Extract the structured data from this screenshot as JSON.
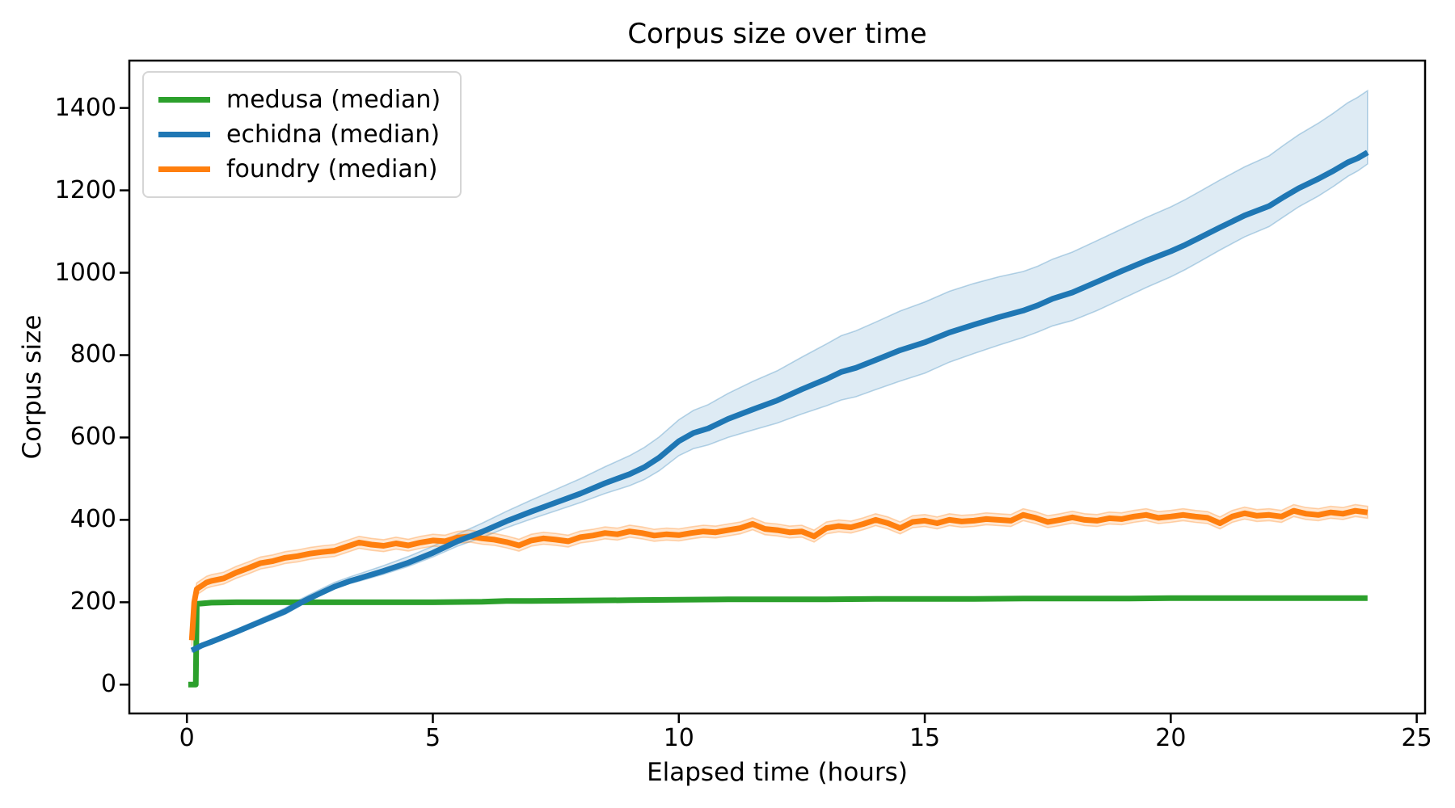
{
  "figure": {
    "background": "#ffffff",
    "text_color": "#000000",
    "axis_color": "#000000"
  },
  "chart_data": {
    "type": "line",
    "title": "Corpus size over time",
    "xlabel": "Elapsed time (hours)",
    "ylabel": "Corpus size",
    "xlim": [
      -1.17,
      25.17
    ],
    "ylim": [
      -70,
      1515
    ],
    "xticks": [
      0,
      5,
      10,
      15,
      20,
      25
    ],
    "yticks": [
      0,
      200,
      400,
      600,
      800,
      1000,
      1200,
      1400
    ],
    "grid": false,
    "legend_position": "upper left",
    "series": [
      {
        "name": "medusa",
        "label": "medusa (median)",
        "color": "#2ca02c",
        "zorder": 1,
        "x": [
          0.03,
          0.18,
          0.2,
          0.5,
          1,
          2,
          3,
          4,
          5,
          6,
          6.5,
          7,
          8,
          9,
          10,
          11,
          12,
          13,
          14,
          15,
          16,
          17,
          18,
          19,
          20,
          21,
          22,
          23,
          24
        ],
        "y": [
          0,
          0,
          196,
          199,
          200,
          200,
          200,
          200,
          200,
          201,
          203,
          203,
          204,
          205,
          206,
          207,
          207,
          207,
          208,
          208,
          208,
          209,
          209,
          209,
          210,
          210,
          210,
          210,
          210
        ]
      },
      {
        "name": "echidna",
        "label": "echidna (median)",
        "color": "#1f77b4",
        "band_color": "rgba(31,119,180,0.15)",
        "band_edge_color": "rgba(31,119,180,0.30)",
        "zorder": 3,
        "x": [
          0.1,
          0.3,
          0.5,
          0.75,
          1,
          1.5,
          2,
          2.3,
          2.5,
          3,
          3.3,
          3.5,
          4,
          4.5,
          5,
          5.5,
          6,
          6.5,
          7,
          7.5,
          8,
          8.5,
          9,
          9.3,
          9.6,
          10,
          10.3,
          10.6,
          11,
          11.5,
          12,
          12.5,
          13,
          13.3,
          13.6,
          14,
          14.5,
          15,
          15.5,
          16,
          16.5,
          17,
          17.3,
          17.6,
          18,
          18.5,
          19,
          19.5,
          20,
          20.3,
          20.6,
          21,
          21.5,
          22,
          22.3,
          22.6,
          23,
          23.3,
          23.6,
          23.8,
          24
        ],
        "y": [
          83,
          95,
          104,
          116,
          128,
          153,
          178,
          198,
          210,
          238,
          251,
          258,
          276,
          296,
          320,
          348,
          371,
          397,
          420,
          442,
          464,
          489,
          511,
          528,
          551,
          591,
          611,
          622,
          645,
          668,
          690,
          717,
          742,
          759,
          769,
          788,
          812,
          831,
          855,
          874,
          892,
          908,
          921,
          937,
          952,
          978,
          1004,
          1029,
          1052,
          1068,
          1086,
          1110,
          1139,
          1162,
          1184,
          1205,
          1228,
          1247,
          1268,
          1278,
          1292
        ],
        "band_upper": [
          86,
          99,
          109,
          122,
          134,
          160,
          186,
          207,
          219,
          248,
          261,
          269,
          289,
          311,
          336,
          365,
          392,
          421,
          448,
          474,
          500,
          529,
          556,
          576,
          601,
          643,
          666,
          680,
          707,
          736,
          762,
          795,
          827,
          847,
          859,
          880,
          907,
          929,
          955,
          974,
          990,
          1003,
          1016,
          1033,
          1050,
          1078,
          1106,
          1134,
          1160,
          1178,
          1198,
          1225,
          1257,
          1284,
          1310,
          1335,
          1363,
          1387,
          1413,
          1426,
          1442
        ],
        "band_lower": [
          80,
          92,
          100,
          111,
          123,
          147,
          171,
          191,
          205,
          232,
          245,
          251,
          268,
          287,
          310,
          336,
          357,
          381,
          402,
          422,
          442,
          464,
          483,
          498,
          519,
          556,
          573,
          582,
          600,
          618,
          635,
          657,
          677,
          691,
          699,
          716,
          737,
          756,
          783,
          804,
          824,
          843,
          856,
          871,
          884,
          908,
          936,
          964,
          990,
          1008,
          1028,
          1055,
          1087,
          1112,
          1136,
          1160,
          1186,
          1209,
          1234,
          1247,
          1264
        ]
      },
      {
        "name": "foundry",
        "label": "foundry (median)",
        "color": "#ff7f0e",
        "band_color": "rgba(255,127,14,0.18)",
        "band_edge_color": "rgba(255,127,14,0.32)",
        "band_upper_offset": 15,
        "band_lower_offset": 14,
        "zorder": 2,
        "x": [
          0.1,
          0.12,
          0.15,
          0.2,
          0.3,
          0.4,
          0.5,
          0.75,
          1,
          1.25,
          1.5,
          1.75,
          2,
          2.25,
          2.5,
          2.75,
          3,
          3.25,
          3.5,
          3.75,
          4,
          4.25,
          4.5,
          4.75,
          5,
          5.25,
          5.5,
          5.75,
          6,
          6.25,
          6.5,
          6.75,
          7,
          7.25,
          7.5,
          7.75,
          8,
          8.25,
          8.5,
          8.75,
          9,
          9.25,
          9.5,
          9.75,
          10,
          10.25,
          10.5,
          10.75,
          11,
          11.25,
          11.5,
          11.75,
          12,
          12.25,
          12.5,
          12.75,
          13,
          13.25,
          13.5,
          13.75,
          14,
          14.25,
          14.5,
          14.75,
          15,
          15.25,
          15.5,
          15.75,
          16,
          16.25,
          16.5,
          16.75,
          17,
          17.25,
          17.5,
          17.75,
          18,
          18.25,
          18.5,
          18.75,
          19,
          19.25,
          19.5,
          19.75,
          20,
          20.25,
          20.5,
          20.75,
          21,
          21.25,
          21.5,
          21.75,
          22,
          22.25,
          22.5,
          22.75,
          23,
          23.25,
          23.5,
          23.75,
          24
        ],
        "y": [
          108,
          145,
          200,
          232,
          240,
          248,
          252,
          258,
          272,
          283,
          295,
          300,
          308,
          312,
          318,
          322,
          325,
          335,
          345,
          340,
          337,
          343,
          338,
          345,
          350,
          348,
          357,
          360,
          355,
          352,
          346,
          338,
          350,
          355,
          352,
          348,
          358,
          362,
          368,
          365,
          372,
          368,
          362,
          365,
          363,
          368,
          372,
          370,
          375,
          380,
          390,
          378,
          375,
          370,
          372,
          360,
          380,
          385,
          382,
          390,
          400,
          392,
          380,
          395,
          398,
          392,
          400,
          396,
          398,
          402,
          400,
          398,
          412,
          405,
          395,
          400,
          406,
          400,
          398,
          404,
          402,
          408,
          412,
          405,
          408,
          412,
          408,
          405,
          392,
          408,
          416,
          410,
          412,
          408,
          422,
          415,
          412,
          418,
          415,
          422,
          418
        ]
      }
    ]
  }
}
